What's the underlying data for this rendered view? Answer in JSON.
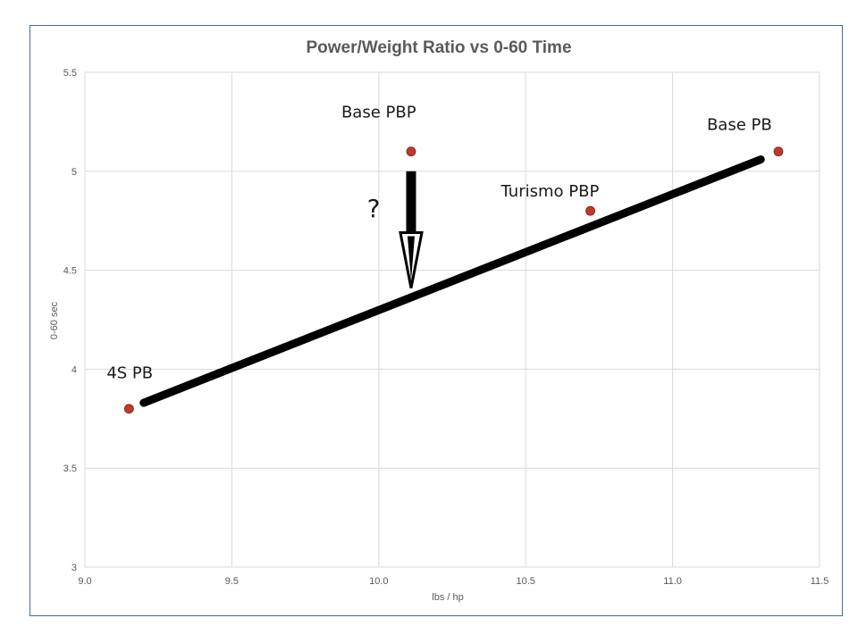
{
  "chart_data": {
    "type": "scatter",
    "title": "Power/Weight Ratio vs 0-60 Time",
    "xlabel": "lbs / hp",
    "ylabel": "0-60 sec",
    "xlim": [
      9.0,
      11.5
    ],
    "ylim": [
      3,
      5.5
    ],
    "xticks": [
      "9.0",
      "9.5",
      "10.0",
      "10.5",
      "11.0",
      "11.5"
    ],
    "yticks": [
      "3",
      "3.5",
      "4",
      "4.5",
      "5",
      "5.5"
    ],
    "grid": true,
    "points": [
      {
        "label": "4S PB",
        "x": 9.15,
        "y": 3.8
      },
      {
        "label": "Base PBP",
        "x": 10.11,
        "y": 5.1
      },
      {
        "label": "Turismo PBP",
        "x": 10.72,
        "y": 4.8
      },
      {
        "label": "Base PB",
        "x": 11.36,
        "y": 5.1
      }
    ],
    "trendline": {
      "x": [
        9.2,
        11.3
      ],
      "y": [
        3.83,
        5.06
      ]
    },
    "arrow": {
      "x": 10.11,
      "y_from": 5.0,
      "y_to": 4.41
    },
    "annotation": {
      "text": "?",
      "x": 9.96,
      "y": 4.77
    },
    "colors": {
      "marker": "#c0392b",
      "trendline": "#000000",
      "grid": "#d9d9d9"
    }
  }
}
